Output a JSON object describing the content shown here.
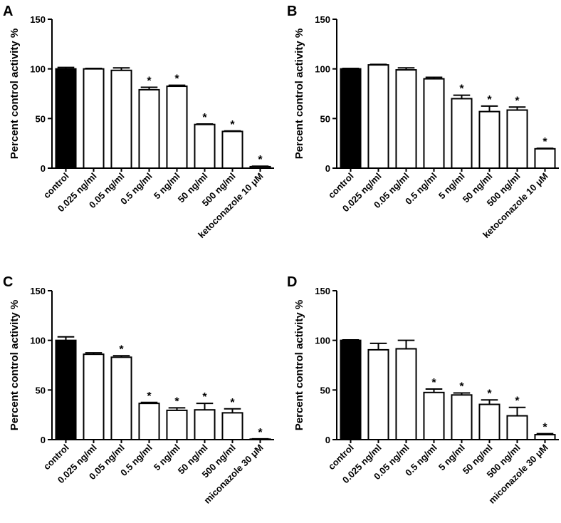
{
  "panels": [
    {
      "letter": "A",
      "chart_data": {
        "type": "bar",
        "ylabel": "Percent control activity %",
        "ylim": [
          0,
          150
        ],
        "yticks": [
          "0",
          "50",
          "100",
          "150"
        ],
        "categories": [
          "control",
          "0.025 ng/ml",
          "0.05 ng/ml",
          "0.5 ng/ml",
          "5 ng/ml",
          "50 ng/ml",
          "500 ng/ml",
          "ketoconazole 10 μM"
        ],
        "values": [
          100,
          100,
          98.5,
          79,
          82.5,
          44,
          37,
          1.5
        ],
        "errors": [
          1.5,
          0.5,
          2.5,
          2.5,
          1,
          0.5,
          0.5,
          0.5
        ],
        "significant": [
          "",
          "",
          "",
          "*",
          "*",
          "*",
          "*",
          "*"
        ],
        "fill": [
          "#000000",
          "#ffffff",
          "#ffffff",
          "#ffffff",
          "#ffffff",
          "#ffffff",
          "#ffffff",
          "#ffffff"
        ]
      }
    },
    {
      "letter": "B",
      "chart_data": {
        "type": "bar",
        "ylabel": "Percent control activity %",
        "ylim": [
          0,
          150
        ],
        "yticks": [
          "0",
          "50",
          "100",
          "150"
        ],
        "categories": [
          "control",
          "0.025 ng/ml",
          "0.05 ng/ml",
          "0.5 ng/ml",
          "5 ng/ml",
          "50 ng/ml",
          "500 ng/ml",
          "ketoconazole 10 μM"
        ],
        "values": [
          100,
          104,
          99,
          90,
          70,
          57,
          58.5,
          19.5
        ],
        "errors": [
          0.5,
          0.5,
          2,
          1.5,
          3.5,
          5.5,
          3,
          0.5
        ],
        "significant": [
          "",
          "",
          "",
          "",
          "*",
          "*",
          "*",
          "*"
        ],
        "fill": [
          "#000000",
          "#ffffff",
          "#ffffff",
          "#ffffff",
          "#ffffff",
          "#ffffff",
          "#ffffff",
          "#ffffff"
        ]
      }
    },
    {
      "letter": "C",
      "chart_data": {
        "type": "bar",
        "ylabel": "Percent control activity %",
        "ylim": [
          0,
          150
        ],
        "yticks": [
          "0",
          "50",
          "100",
          "150"
        ],
        "categories": [
          "control",
          "0.025 ng/ml",
          "0.05 ng/ml",
          "0.5 ng/ml",
          "5 ng/ml",
          "50 ng/ml",
          "500 ng/ml",
          "miconazole 30 μM"
        ],
        "values": [
          100,
          86,
          83,
          36.5,
          29.5,
          30,
          27,
          0.5
        ],
        "errors": [
          3.5,
          1.5,
          1.5,
          1,
          2.5,
          6.5,
          4,
          0.3
        ],
        "significant": [
          "",
          "",
          "*",
          "*",
          "*",
          "*",
          "*",
          "*"
        ],
        "fill": [
          "#000000",
          "#ffffff",
          "#ffffff",
          "#ffffff",
          "#ffffff",
          "#ffffff",
          "#ffffff",
          "#ffffff"
        ]
      }
    },
    {
      "letter": "D",
      "chart_data": {
        "type": "bar",
        "ylabel": "Percent control activity %",
        "ylim": [
          0,
          150
        ],
        "yticks": [
          "0",
          "50",
          "100",
          "150"
        ],
        "categories": [
          "control",
          "0.025 ng/ml",
          "0.05 ng/ml",
          "0.5 ng/ml",
          "5 ng/ml",
          "50 ng/ml",
          "500 ng/ml",
          "miconazole 30 μM"
        ],
        "values": [
          100,
          90.5,
          91.5,
          47.5,
          45,
          35.5,
          24,
          5
        ],
        "errors": [
          0.5,
          6.5,
          8.5,
          3.5,
          2,
          4.5,
          8.5,
          1
        ],
        "significant": [
          "",
          "",
          "",
          "*",
          "*",
          "*",
          "*",
          "*"
        ],
        "fill": [
          "#000000",
          "#ffffff",
          "#ffffff",
          "#ffffff",
          "#ffffff",
          "#ffffff",
          "#ffffff",
          "#ffffff"
        ]
      }
    }
  ]
}
